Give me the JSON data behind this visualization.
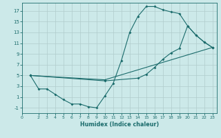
{
  "xlabel": "Humidex (Indice chaleur)",
  "bg_color": "#cce9e9",
  "line_color": "#1a6b6b",
  "grid_color": "#b0cccc",
  "xlim": [
    0,
    23.5
  ],
  "ylim": [
    -2,
    18.5
  ],
  "xticks": [
    0,
    2,
    3,
    4,
    5,
    6,
    7,
    8,
    9,
    10,
    11,
    12,
    13,
    14,
    15,
    16,
    17,
    18,
    19,
    20,
    21,
    22,
    23
  ],
  "yticks": [
    -1,
    1,
    3,
    5,
    7,
    9,
    11,
    13,
    15,
    17
  ],
  "line1_x": [
    1,
    2,
    3,
    4,
    5,
    6,
    7,
    8,
    9,
    10,
    11,
    12,
    13,
    14,
    15,
    16,
    17,
    18,
    19,
    20,
    21,
    22,
    23
  ],
  "line1_y": [
    5,
    2.5,
    2.5,
    1.5,
    0.5,
    -0.3,
    -0.3,
    -0.8,
    -1.0,
    1.2,
    3.5,
    7.8,
    13,
    16,
    17.8,
    17.8,
    17.2,
    16.8,
    16.5,
    14.2,
    12.5,
    11.2,
    10.2
  ],
  "line2_x": [
    1,
    10,
    14,
    15,
    16,
    17,
    18,
    19,
    20,
    21,
    22,
    23
  ],
  "line2_y": [
    5,
    4,
    4.5,
    5.2,
    6.5,
    8,
    9.2,
    10,
    14.2,
    12.5,
    11.2,
    10.2
  ],
  "line3_x": [
    1,
    10,
    23
  ],
  "line3_y": [
    5,
    4.2,
    10.2
  ]
}
